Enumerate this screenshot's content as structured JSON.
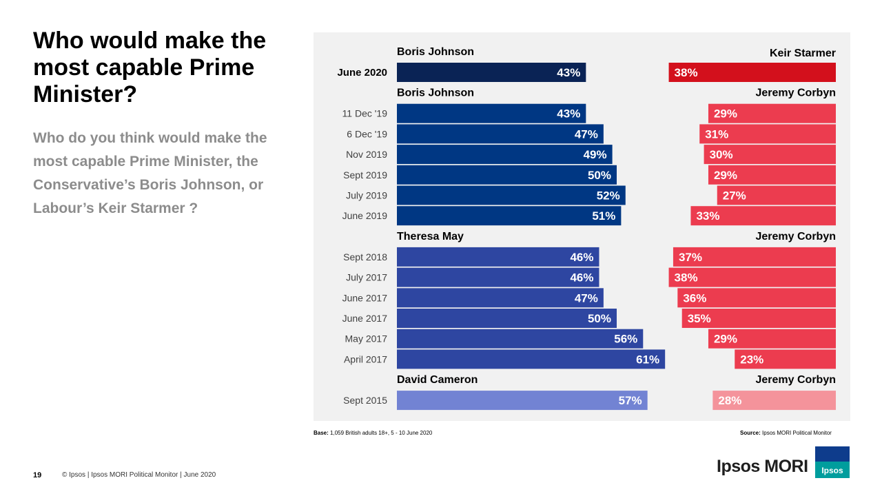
{
  "slide": {
    "title": "Who would make the most capable Prime Minister?",
    "subtitle": "Who do you think would make the most capable Prime Minister, the Conservative’s Boris Johnson, or Labour’s Keir Starmer ?",
    "base_label": "Base:",
    "base_text": "1,059 British adults 18+, 5 - 10 June 2020",
    "source_label": "Source:",
    "source_text": "Ipsos MORI Political Monitor",
    "page_number": "19",
    "copyright": "© Ipsos | Ipsos MORI Political Monitor | June 2020",
    "logo_text": "Ipsos MORI",
    "logo_badge_text": "Ipsos"
  },
  "chart_data": {
    "type": "bar",
    "orientation": "horizontal-diverging",
    "groups": [
      {
        "left_leader": "Boris Johnson",
        "right_leader": "Keir Starmer",
        "left_color": "#0a2355",
        "right_color": "#d3101c",
        "rows": [
          {
            "date": "June 2020",
            "left": 43,
            "right": 38,
            "left_label": "43%",
            "right_label": "38%",
            "emphasis": true
          }
        ]
      },
      {
        "left_leader": "Boris Johnson",
        "right_leader": "Jeremy Corbyn",
        "left_color": "#003783",
        "right_color": "#ec3c4f",
        "rows": [
          {
            "date": "11 Dec '19",
            "left": 43,
            "right": 29,
            "left_label": "43%",
            "right_label": "29%"
          },
          {
            "date": "6 Dec '19",
            "left": 47,
            "right": 31,
            "left_label": "47%",
            "right_label": "31%"
          },
          {
            "date": "Nov 2019",
            "left": 49,
            "right": 30,
            "left_label": "49%",
            "right_label": "30%"
          },
          {
            "date": "Sept 2019",
            "left": 50,
            "right": 29,
            "left_label": "50%",
            "right_label": "29%"
          },
          {
            "date": "July 2019",
            "left": 52,
            "right": 27,
            "left_label": "52%",
            "right_label": "27%"
          },
          {
            "date": "June 2019",
            "left": 51,
            "right": 33,
            "left_label": "51%",
            "right_label": "33%"
          }
        ]
      },
      {
        "left_leader": "Theresa May",
        "right_leader": "Jeremy Corbyn",
        "left_color": "#2e46a1",
        "right_color": "#ec3c4f",
        "rows": [
          {
            "date": "Sept 2018",
            "left": 46,
            "right": 37,
            "left_label": "46%",
            "right_label": "37%"
          },
          {
            "date": "July 2017",
            "left": 46,
            "right": 38,
            "left_label": "46%",
            "right_label": "38%"
          },
          {
            "date": "June 2017",
            "left": 47,
            "right": 36,
            "left_label": "47%",
            "right_label": "36%"
          },
          {
            "date": "June 2017",
            "left": 50,
            "right": 35,
            "left_label": "50%",
            "right_label": "35%"
          },
          {
            "date": "May 2017",
            "left": 56,
            "right": 29,
            "left_label": "56%",
            "right_label": "29%"
          },
          {
            "date": "April 2017",
            "left": 61,
            "right": 23,
            "left_label": "61%",
            "right_label": "23%"
          }
        ]
      },
      {
        "left_leader": "David Cameron",
        "right_leader": "Jeremy Corbyn",
        "left_color": "#7283d3",
        "right_color": "#f4939b",
        "rows": [
          {
            "date": "Sept 2015",
            "left": 57,
            "right": 28,
            "left_label": "57%",
            "right_label": "28%"
          }
        ]
      }
    ]
  }
}
